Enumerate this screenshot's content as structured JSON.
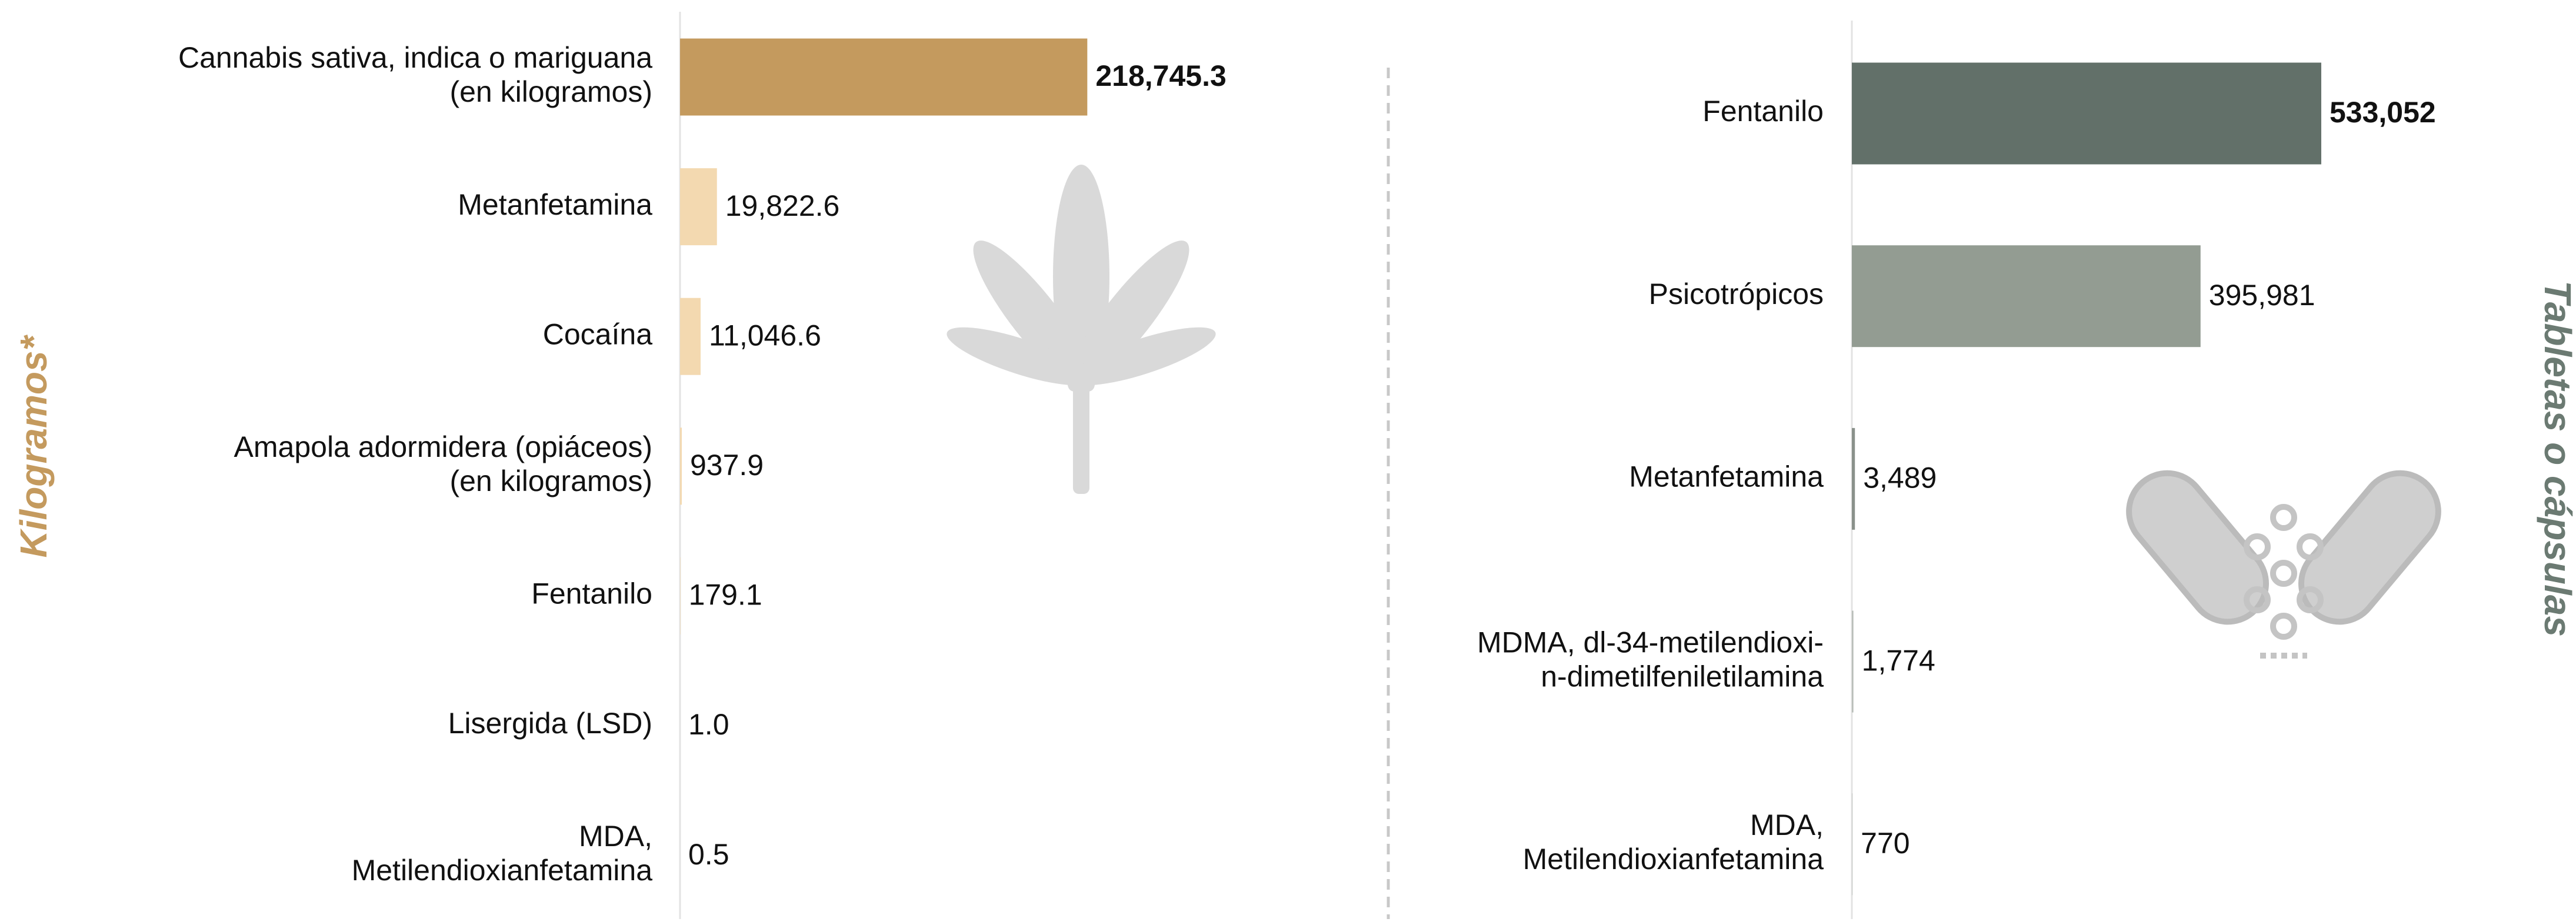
{
  "chart_data": [
    {
      "type": "bar",
      "orientation": "horizontal",
      "y_label": "Kilogramos*",
      "y_label_color": "#c49a5e",
      "categories": [
        [
          "Cannabis sativa, indica o mariguana",
          "(en kilogramos)"
        ],
        [
          "Metanfetamina"
        ],
        [
          "Cocaína"
        ],
        [
          "Amapola adormidera (opiáceos)",
          "(en kilogramos)"
        ],
        [
          "Fentanilo"
        ],
        [
          "Lisergida (LSD)"
        ],
        [
          "MDA,",
          "Metilendioxianfetamina"
        ]
      ],
      "values": [
        218745.3,
        19822.6,
        11046.6,
        937.9,
        179.1,
        1.0,
        0.5
      ],
      "value_labels": [
        "218,745.3",
        "19,822.6",
        "11,046.6",
        "937.9",
        "179.1",
        "1.0",
        "0.5"
      ],
      "colors": [
        "#c49a5e",
        "#f3d9b0",
        "#f3d9b0",
        "#f3d9b0",
        "#f3d9b0",
        "#f3d9b0",
        "#f3d9b0"
      ],
      "xlim": [
        0,
        400000
      ]
    },
    {
      "type": "bar",
      "orientation": "horizontal",
      "y_label": "Tabletas o cápsulas",
      "y_label_color": "#6b7a72",
      "categories": [
        [
          "Fentanilo"
        ],
        [
          "Psicotrópicos"
        ],
        [
          "Metanfetamina"
        ],
        [
          "MDMA, dl-34-metilendioxi-",
          "n-dimetilfeniletilamina"
        ],
        [
          "MDA,",
          "Metilendioxianfetamina"
        ]
      ],
      "values": [
        533052,
        395981,
        3489,
        1774,
        770
      ],
      "value_labels": [
        "533,052",
        "395,981",
        "3,489",
        "1,774",
        "770"
      ],
      "colors": [
        "#627069",
        "#939c92",
        "#8a918b",
        "#b9beb9",
        "#c9ccc9"
      ],
      "xlim": [
        0,
        1000000
      ]
    }
  ]
}
